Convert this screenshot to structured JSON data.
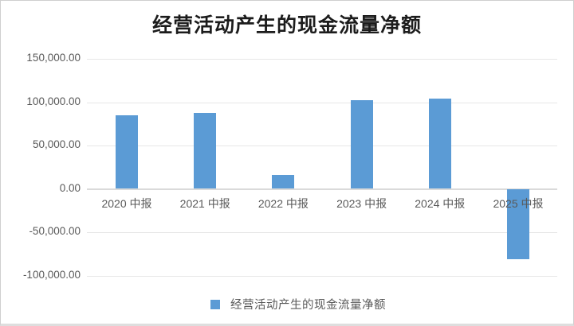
{
  "chart_data": {
    "type": "bar",
    "title": "经营活动产生的现金流量净额",
    "series_name": "经营活动产生的现金流量净额",
    "categories": [
      "2020 中报",
      "2021 中报",
      "2022 中报",
      "2023 中报",
      "2024 中报",
      "2025 中报"
    ],
    "values": [
      85000,
      87600,
      16100,
      102300,
      103800,
      -81200
    ],
    "yticks": [
      150000,
      100000,
      50000,
      0,
      -50000,
      -100000
    ],
    "ytick_labels": [
      "150,000.00",
      "100,000.00",
      "50,000.00",
      "0.00",
      "-50,000.00",
      "-100,000.00"
    ],
    "ylim": [
      -100000,
      150000
    ],
    "xlabel": "",
    "ylabel": "",
    "grid": true,
    "legend_position": "bottom",
    "bar_color": "#5B9BD5",
    "label_color": "#595959",
    "gridline_color": "#E7E7E7"
  }
}
